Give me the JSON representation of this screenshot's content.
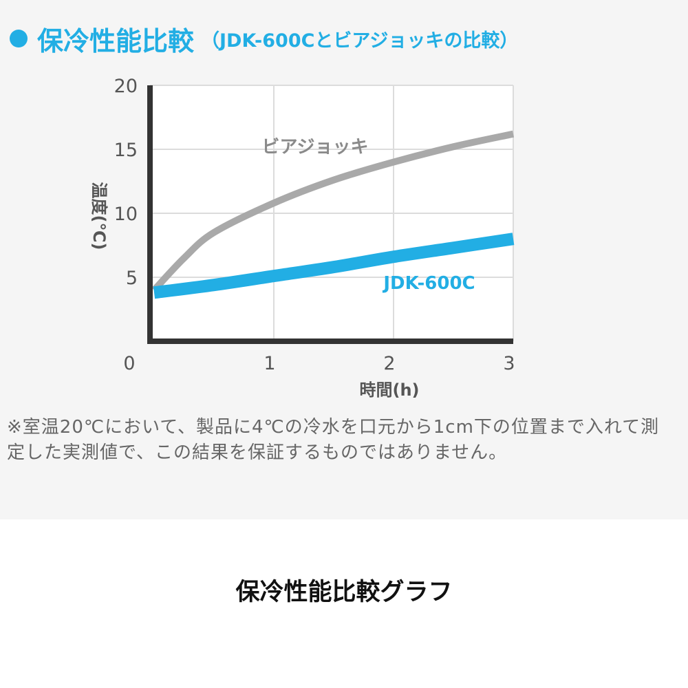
{
  "heading": {
    "main": "保冷性能比較",
    "sub": "（JDK-600Cとビアジョッキの比較）"
  },
  "colors": {
    "accent": "#22aee4",
    "beer_mug": "#a9a9a9",
    "axis": "#333333",
    "grid": "#dcdcdc"
  },
  "chart_data": {
    "type": "line",
    "xlabel": "時間(h)",
    "ylabel": "温度(℃)",
    "xlim": [
      0,
      3
    ],
    "ylim": [
      0,
      20
    ],
    "xticks": [
      "0",
      "1",
      "2",
      "3"
    ],
    "yticks": [
      "5",
      "10",
      "15",
      "20"
    ],
    "grid": true,
    "series": [
      {
        "name": "ビアジョッキ",
        "color": "#a9a9a9",
        "x": [
          0,
          0.25,
          0.5,
          1.0,
          1.5,
          2.0,
          2.5,
          3.0
        ],
        "y": [
          4,
          6.5,
          8.5,
          10.8,
          12.6,
          14.0,
          15.2,
          16.2
        ]
      },
      {
        "name": "JDK-600C",
        "color": "#22aee4",
        "x": [
          0,
          0.5,
          1.0,
          1.5,
          2.0,
          2.5,
          3.0
        ],
        "y": [
          3.8,
          4.4,
          5.1,
          5.8,
          6.6,
          7.3,
          8.0
        ]
      }
    ]
  },
  "note": "※室温20℃において、製品に4℃の冷水を口元から1cm下の位置まで入れて測定した実測値で、この結果を保証するものではありません。",
  "caption": "保冷性能比較グラフ"
}
